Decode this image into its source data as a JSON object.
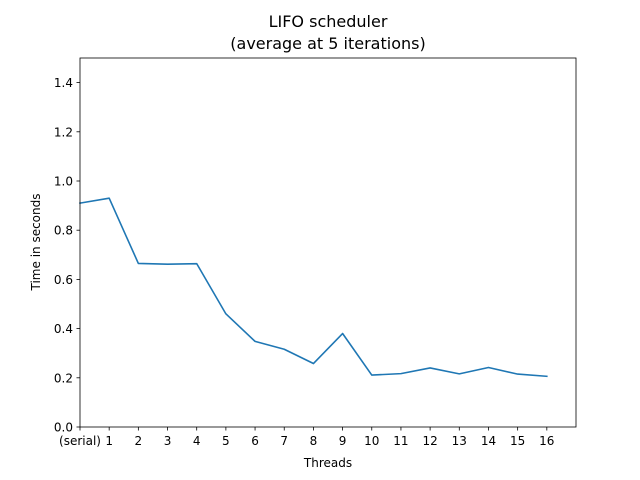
{
  "chart_data": {
    "type": "line",
    "title": "LIFO scheduler",
    "subtitle": "(average at 5 iterations)",
    "xlabel": "Threads",
    "ylabel": "Time in seconds",
    "categories": [
      "(serial)",
      "1",
      "2",
      "3",
      "4",
      "5",
      "6",
      "7",
      "8",
      "9",
      "10",
      "11",
      "12",
      "13",
      "14",
      "15",
      "16"
    ],
    "series": [
      {
        "values": [
          0.91,
          0.93,
          0.665,
          0.662,
          0.664,
          0.46,
          0.348,
          0.316,
          0.258,
          0.38,
          0.211,
          0.217,
          0.24,
          0.216,
          0.242,
          0.215,
          0.206
        ],
        "color": "#1f77b4"
      }
    ],
    "ylim": [
      0,
      1.5
    ],
    "yticks": [
      "0.0",
      "0.2",
      "0.4",
      "0.6",
      "0.8",
      "1.0",
      "1.2",
      "1.4"
    ],
    "grid": false,
    "legend": "none"
  }
}
